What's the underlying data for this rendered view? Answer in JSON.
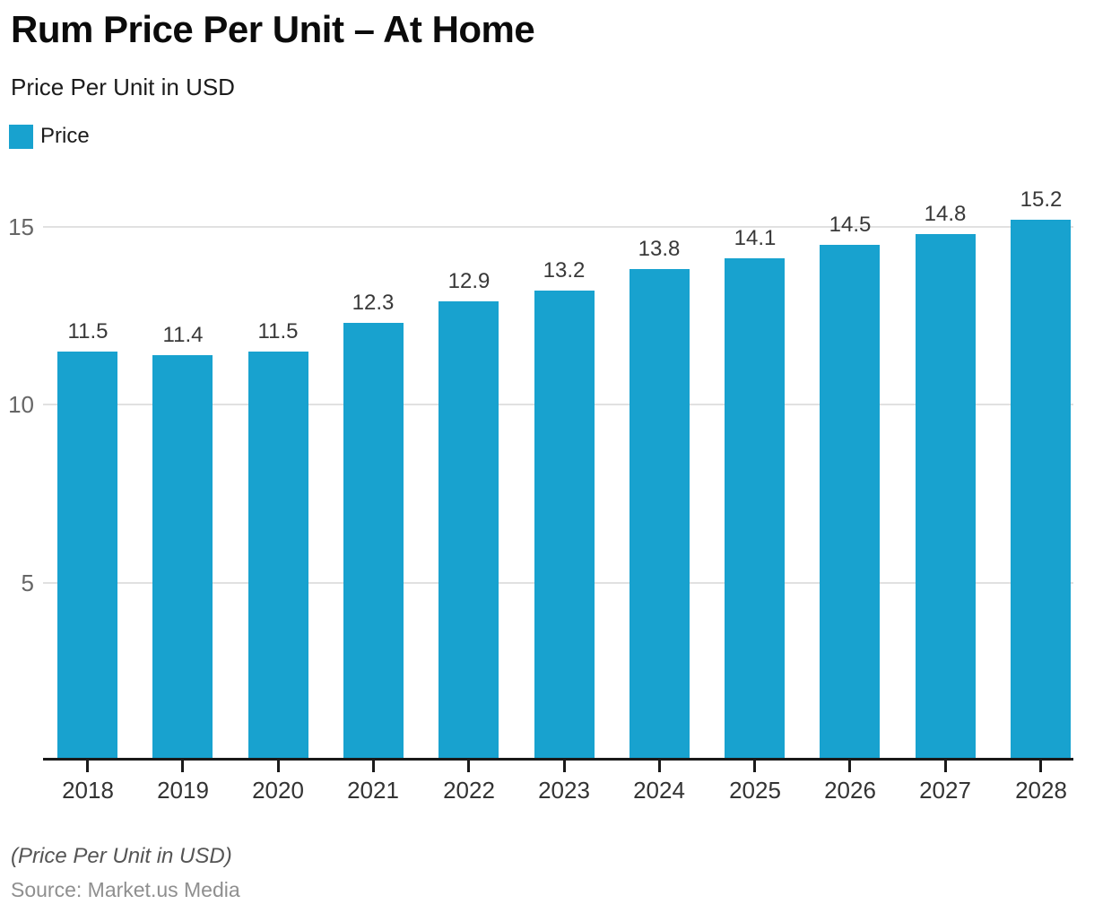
{
  "header": {
    "title": "Rum Price Per Unit – At Home",
    "subtitle": "Price Per Unit in USD"
  },
  "legend": {
    "items": [
      {
        "label": "Price",
        "color": "#18a2cf"
      }
    ]
  },
  "footer": {
    "note": "(Price Per Unit in USD)",
    "source": "Source: Market.us Media"
  },
  "chart_data": {
    "type": "bar",
    "title": "Rum Price Per Unit – At Home",
    "subtitle": "Price Per Unit in USD",
    "categories": [
      "2018",
      "2019",
      "2020",
      "2021",
      "2022",
      "2023",
      "2024",
      "2025",
      "2026",
      "2027",
      "2028"
    ],
    "series": [
      {
        "name": "Price",
        "color": "#18a2cf",
        "values": [
          11.5,
          11.4,
          11.5,
          12.3,
          12.9,
          13.2,
          13.8,
          14.1,
          14.5,
          14.8,
          15.2
        ]
      }
    ],
    "xlabel": "",
    "ylabel": "",
    "yticks": [
      5,
      10,
      15
    ],
    "ylim": [
      0,
      15.5
    ],
    "grid": true,
    "value_labels": true,
    "legend_position": "top-left",
    "colors": {
      "bar": "#18a2cf",
      "gridline": "#e1e1e1",
      "axis_line": "#1a1a1a",
      "y_tick_label": "#666666",
      "x_tick_label": "#333333",
      "value_label": "#383838"
    }
  }
}
